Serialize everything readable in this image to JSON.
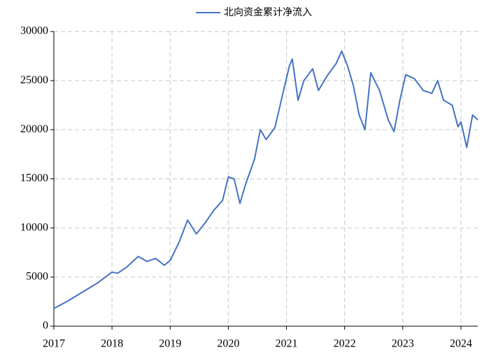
{
  "chart_data": {
    "type": "line",
    "x": [
      2017.0,
      2017.25,
      2017.5,
      2017.75,
      2018.0,
      2018.1,
      2018.25,
      2018.45,
      2018.6,
      2018.75,
      2018.9,
      2019.0,
      2019.15,
      2019.3,
      2019.45,
      2019.6,
      2019.75,
      2019.9,
      2020.0,
      2020.1,
      2020.2,
      2020.3,
      2020.45,
      2020.55,
      2020.65,
      2020.8,
      2020.95,
      2021.05,
      2021.1,
      2021.2,
      2021.3,
      2021.45,
      2021.55,
      2021.7,
      2021.85,
      2021.95,
      2022.05,
      2022.15,
      2022.25,
      2022.35,
      2022.45,
      2022.6,
      2022.75,
      2022.85,
      2022.95,
      2023.05,
      2023.2,
      2023.35,
      2023.5,
      2023.6,
      2023.7,
      2023.85,
      2023.95,
      2024.0,
      2024.1,
      2024.2,
      2024.29
    ],
    "series": [
      {
        "name": "北向资金累计净流入",
        "color": "#4472c4",
        "values": [
          1800,
          2600,
          3500,
          4400,
          5500,
          5400,
          6000,
          7100,
          6600,
          6900,
          6200,
          6700,
          8500,
          10800,
          9400,
          10500,
          11800,
          12800,
          15200,
          15000,
          12500,
          14500,
          17000,
          20000,
          19000,
          20200,
          24000,
          26500,
          27200,
          23000,
          25000,
          26200,
          24000,
          25500,
          26700,
          28000,
          26500,
          24500,
          21500,
          20000,
          25800,
          24000,
          21000,
          19800,
          23000,
          25600,
          25200,
          24000,
          23700,
          25000,
          23000,
          22500,
          20300,
          20800,
          18200,
          21500,
          21000
        ]
      }
    ],
    "xlim": [
      2017,
      2024.29
    ],
    "xticks": [
      2017,
      2018,
      2019,
      2020,
      2021,
      2022,
      2023,
      2024
    ],
    "ylim": [
      0,
      30000
    ],
    "yticks": [
      0,
      5000,
      10000,
      15000,
      20000,
      25000,
      30000
    ],
    "grid": true,
    "legend": "top"
  }
}
